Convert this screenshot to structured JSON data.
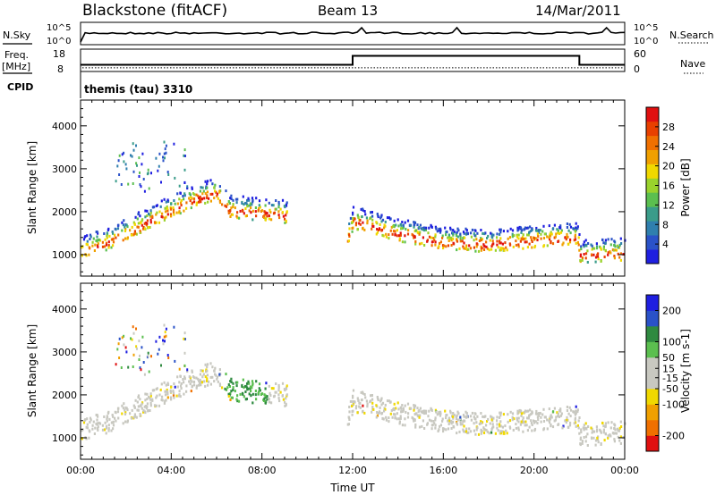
{
  "header": {
    "station": "Blackstone (fitACF)",
    "beam": "Beam 13",
    "date": "14/Mar/2011"
  },
  "top_panels": {
    "nsky_label": "N.Sky",
    "nsearch_label": "N.Search",
    "noise_tick_top": "10^5",
    "noise_tick_bottom": "10^0",
    "freq_label_1": "Freq.",
    "freq_label_2": "[MHz]",
    "freq_tick_top": "18",
    "freq_tick_bottom": "8",
    "nave_label": "Nave",
    "nave_tick_top": "60",
    "nave_tick_bottom": "0",
    "cpid_label": "CPID",
    "cpid_value": "themis (tau) 3310",
    "freq_step": {
      "x_start_hours": 0,
      "x_switch_hours": 12,
      "x_end_hours": 22,
      "low_mhz": 11,
      "high_mhz": 15
    },
    "nave_level": 10
  },
  "colors": {
    "power_scale": [
      "#1f1fe0",
      "#2a52c8",
      "#2f7fae",
      "#3a9c8a",
      "#5bbf4f",
      "#9ad22c",
      "#f0d800",
      "#f0a000",
      "#f07000",
      "#e84000",
      "#e01010"
    ],
    "velocity_scale": [
      "#e01010",
      "#f07000",
      "#f0a000",
      "#f0d800",
      "#c8c8c0",
      "#c8c8c0",
      "#5bbf4f",
      "#2f8a40",
      "#2a52c8",
      "#1f1fe0"
    ]
  },
  "chart_data": [
    {
      "type": "heatmap",
      "name": "power",
      "title": "",
      "xlabel": "",
      "ylabel": "Slant Range [km]",
      "xlim": [
        0,
        24
      ],
      "ylim": [
        500,
        4600
      ],
      "yticks": [
        "1000",
        "2000",
        "3000",
        "4000"
      ],
      "colorbar_label": "Power [dB]",
      "colorbar_ticks": [
        "4",
        "8",
        "12",
        "16",
        "20",
        "24",
        "28"
      ],
      "colorbar_range": [
        0,
        32
      ],
      "echo_band": [
        {
          "t": 0.0,
          "r": 1100
        },
        {
          "t": 1.0,
          "r": 1250
        },
        {
          "t": 2.0,
          "r": 1500
        },
        {
          "t": 3.0,
          "r": 1800
        },
        {
          "t": 4.0,
          "r": 2050
        },
        {
          "t": 5.0,
          "r": 2300
        },
        {
          "t": 6.0,
          "r": 2450
        },
        {
          "t": 6.5,
          "r": 2050
        },
        {
          "t": 7.5,
          "r": 2000
        },
        {
          "t": 8.8,
          "r": 1950
        },
        {
          "t": 11.7,
          "r": 1300
        },
        {
          "t": 12.0,
          "r": 1800
        },
        {
          "t": 14.0,
          "r": 1500
        },
        {
          "t": 16.0,
          "r": 1300
        },
        {
          "t": 18.0,
          "r": 1250
        },
        {
          "t": 20.0,
          "r": 1350
        },
        {
          "t": 21.9,
          "r": 1400
        },
        {
          "t": 22.0,
          "r": 1000
        },
        {
          "t": 24.0,
          "r": 1050
        }
      ]
    },
    {
      "type": "heatmap",
      "name": "velocity",
      "title": "",
      "xlabel": "Time UT",
      "ylabel": "Slant Range [km]",
      "xlim": [
        0,
        24
      ],
      "ylim": [
        500,
        4600
      ],
      "xticks": [
        "00:00",
        "04:00",
        "08:00",
        "12:00",
        "16:00",
        "20:00",
        "00:00"
      ],
      "yticks": [
        "1000",
        "2000",
        "3000",
        "4000"
      ],
      "colorbar_label": "Velocity [m s-1]",
      "colorbar_ticks": [
        "-200",
        "-100",
        "-50",
        "-15",
        "15",
        "50",
        "100",
        "200"
      ],
      "colorbar_range": [
        -250,
        250
      ]
    }
  ]
}
